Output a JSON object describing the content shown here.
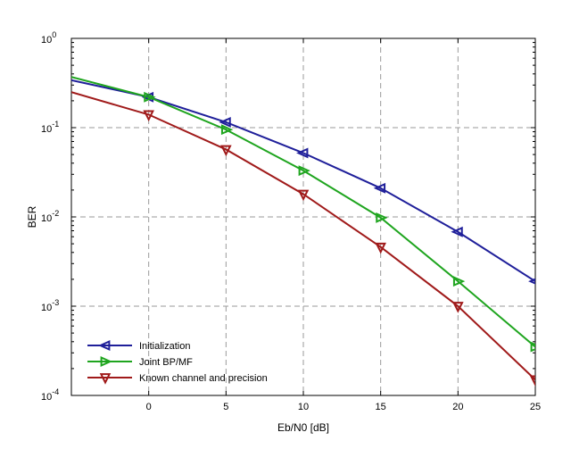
{
  "chart_data": {
    "type": "line",
    "title": "",
    "xlabel": "Eb/N0 [dB]",
    "ylabel": "BER",
    "xlim": [
      -5,
      25
    ],
    "ylim": [
      0.0001,
      1
    ],
    "yscale": "log",
    "grid": true,
    "legend_position": "bottom-left",
    "x_ticks": [
      "0",
      "5",
      "10",
      "15",
      "20",
      "25"
    ],
    "y_ticks": [
      {
        "base": "10",
        "exp": "0"
      },
      {
        "base": "10",
        "exp": "-1"
      },
      {
        "base": "10",
        "exp": "-2"
      },
      {
        "base": "10",
        "exp": "-3"
      },
      {
        "base": "10",
        "exp": "-4"
      }
    ],
    "series": [
      {
        "name": "Initialization",
        "color": "#1f1f9a",
        "marker": "triangle-left",
        "x": [
          -5,
          0,
          5,
          10,
          15,
          20,
          25
        ],
        "y": [
          0.34,
          0.22,
          0.115,
          0.052,
          0.021,
          0.0068,
          0.0019
        ],
        "marker_x": [
          0,
          5,
          10,
          15,
          20,
          25
        ]
      },
      {
        "name": "Joint BP/MF",
        "color": "#1fa51f",
        "marker": "triangle-right",
        "x": [
          -5,
          0,
          5,
          10,
          15,
          20,
          25
        ],
        "y": [
          0.37,
          0.22,
          0.095,
          0.033,
          0.0098,
          0.0019,
          0.00035
        ],
        "marker_x": [
          0,
          5,
          10,
          15,
          20,
          25
        ]
      },
      {
        "name": "Known channel and precision",
        "color": "#a01a1a",
        "marker": "triangle-down",
        "x": [
          -5,
          0,
          5,
          10,
          15,
          20,
          25
        ],
        "y": [
          0.25,
          0.14,
          0.057,
          0.018,
          0.0046,
          0.001,
          0.00015
        ],
        "marker_x": [
          0,
          5,
          10,
          15,
          20,
          25
        ]
      }
    ]
  }
}
